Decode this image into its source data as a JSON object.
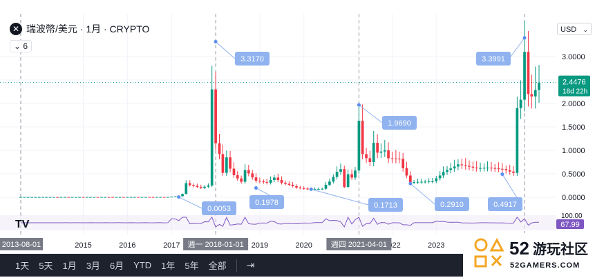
{
  "header": {
    "symbol_title": "瑞波幣/美元 · 1月 · CRYPTO",
    "symbol_icon": "x-logo-icon",
    "indicator_value": "6",
    "currency": "USD"
  },
  "price_badge": {
    "price": "2.4476",
    "countdown": "18d 22h",
    "color": "#089981"
  },
  "rsi_badge": {
    "value": "67.99",
    "color": "#7e57c2"
  },
  "rsi_scale_label": "100.00",
  "colors": {
    "up": "#089981",
    "down": "#f23645",
    "callout": "#90b3f0",
    "rsi_line": "#7e57c2"
  },
  "time_axis": {
    "labels": [
      "2015",
      "2016",
      "2017",
      "2019",
      "2020",
      "2022",
      "2023"
    ],
    "crosshair_labels": [
      "2013-08-01",
      "週一 2018-01-01",
      "週四 2021-04-01"
    ]
  },
  "timeframes": [
    "1天",
    "5天",
    "1月",
    "3月",
    "6月",
    "YTD",
    "1年",
    "5年",
    "全部"
  ],
  "tv_logo_text": "TV",
  "watermark": {
    "number": "52",
    "name": "游玩社区",
    "site": "52GAMERS.COM"
  },
  "chart_data": {
    "type": "candlestick",
    "title": "瑞波幣/美元 · 1月 · CRYPTO",
    "xlabel": "",
    "ylabel": "",
    "ylim": [
      0,
      3.4
    ],
    "y_ticks": [
      "0.0000",
      "0.5000",
      "1.0000",
      "1.5000",
      "2.0000",
      "2.5000",
      "3.0000"
    ],
    "current_price": 2.4476,
    "annotations": [
      {
        "label": "3.3170",
        "type": "high",
        "date": "2018-01"
      },
      {
        "label": "0.0053",
        "type": "low",
        "date": "2017-03"
      },
      {
        "label": "0.1978",
        "type": "low",
        "date": "2018-12"
      },
      {
        "label": "1.9690",
        "type": "high",
        "date": "2021-04"
      },
      {
        "label": "0.1713",
        "type": "low",
        "date": "2020-03"
      },
      {
        "label": "0.2910",
        "type": "low",
        "date": "2022-06"
      },
      {
        "label": "3.3991",
        "type": "high",
        "date": "2025-01"
      },
      {
        "label": "0.4917",
        "type": "low",
        "date": "2024-07"
      }
    ],
    "series": [
      {
        "monthly_close_points": [
          [
            "2013-08",
            0.005
          ],
          [
            "2016-12",
            0.006
          ],
          [
            "2017-03",
            0.02
          ],
          [
            "2017-04",
            0.07
          ],
          [
            "2017-05",
            0.3
          ],
          [
            "2017-06",
            0.26
          ],
          [
            "2017-09",
            0.2
          ],
          [
            "2017-11",
            0.25
          ],
          [
            "2017-12",
            2.3
          ],
          [
            "2018-01",
            1.15
          ],
          [
            "2018-02",
            0.92
          ],
          [
            "2018-03",
            0.52
          ],
          [
            "2018-04",
            0.85
          ],
          [
            "2018-05",
            0.61
          ],
          [
            "2018-06",
            0.47
          ],
          [
            "2018-08",
            0.33
          ],
          [
            "2018-09",
            0.58
          ],
          [
            "2018-12",
            0.35
          ],
          [
            "2019-03",
            0.31
          ],
          [
            "2019-05",
            0.42
          ],
          [
            "2019-07",
            0.31
          ],
          [
            "2019-12",
            0.19
          ],
          [
            "2020-03",
            0.17
          ],
          [
            "2020-06",
            0.18
          ],
          [
            "2020-11",
            0.6
          ],
          [
            "2020-12",
            0.22
          ],
          [
            "2021-01",
            0.49
          ],
          [
            "2021-02",
            0.42
          ],
          [
            "2021-03",
            0.57
          ],
          [
            "2021-04",
            1.63
          ],
          [
            "2021-05",
            0.92
          ],
          [
            "2021-07",
            0.75
          ],
          [
            "2021-08",
            1.16
          ],
          [
            "2021-09",
            0.95
          ],
          [
            "2021-11",
            1.0
          ],
          [
            "2021-12",
            0.83
          ],
          [
            "2022-03",
            0.82
          ],
          [
            "2022-04",
            0.62
          ],
          [
            "2022-06",
            0.32
          ],
          [
            "2022-12",
            0.34
          ],
          [
            "2023-03",
            0.54
          ],
          [
            "2023-07",
            0.7
          ],
          [
            "2023-12",
            0.62
          ],
          [
            "2024-03",
            0.63
          ],
          [
            "2024-07",
            0.6
          ],
          [
            "2024-10",
            0.52
          ],
          [
            "2024-11",
            1.9
          ],
          [
            "2024-12",
            2.08
          ],
          [
            "2025-01",
            3.1
          ],
          [
            "2025-02",
            2.2
          ],
          [
            "2025-03",
            2.15
          ],
          [
            "2025-05",
            2.44
          ]
        ]
      }
    ]
  }
}
